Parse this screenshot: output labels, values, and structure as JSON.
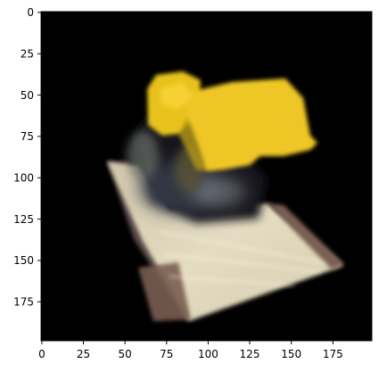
{
  "image": {
    "description_icon": "rendered-scene-image",
    "x_axis": {
      "range": [
        0,
        199
      ],
      "ticks": [
        0,
        25,
        50,
        75,
        100,
        125,
        150,
        175
      ],
      "tick_labels": [
        "0",
        "25",
        "50",
        "75",
        "100",
        "125",
        "150",
        "175"
      ]
    },
    "y_axis": {
      "range": [
        0,
        199
      ],
      "ticks": [
        0,
        25,
        50,
        75,
        100,
        125,
        150,
        175
      ],
      "tick_labels": [
        "0",
        "25",
        "50",
        "75",
        "100",
        "125",
        "150",
        "175"
      ],
      "inverted": true
    },
    "colors": {
      "background": "#000000",
      "roof_yellow": "#e9c21c",
      "platform_cream": "#dcd3b6",
      "platform_edge_brown": "#7a5f52"
    }
  }
}
